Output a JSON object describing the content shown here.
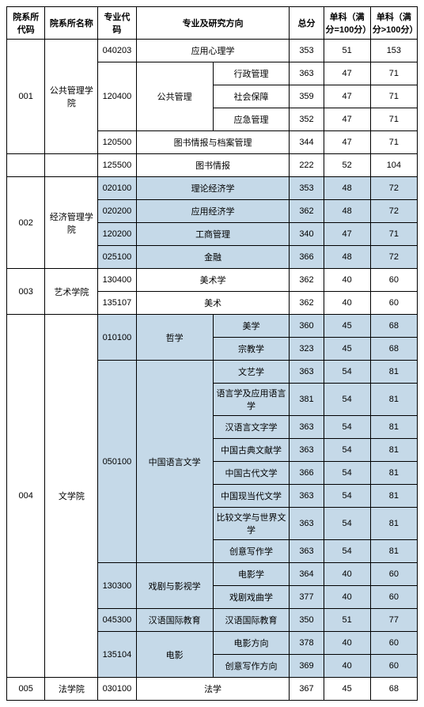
{
  "headers": {
    "dept_code": "院系所代码",
    "dept_name": "院系所名称",
    "major_code": "专业代码",
    "major_dir": "专业及研究方向",
    "total": "总分",
    "sub1": "单科（满分=100分）",
    "sub2": "单科（满分>100分）"
  },
  "colors": {
    "highlight": "#c5d9e8",
    "border": "#000000",
    "bg": "#ffffff"
  },
  "rows": [
    {
      "dept_code": "001",
      "dept_name": "公共管理学院",
      "major_code": "040203",
      "dir": "应用心理学",
      "sub": "",
      "total": "353",
      "s1": "51",
      "s2": "153",
      "span_dept": 5,
      "span_major": 1,
      "dir_span": 2
    },
    {
      "major_code": "120400",
      "dir": "公共管理",
      "sub": "行政管理",
      "total": "363",
      "s1": "47",
      "s2": "71",
      "span_major": 3,
      "dir_rowspan": 3
    },
    {
      "sub": "社会保障",
      "total": "359",
      "s1": "47",
      "s2": "71"
    },
    {
      "sub": "应急管理",
      "total": "352",
      "s1": "47",
      "s2": "71"
    },
    {
      "major_code": "120500",
      "dir": "图书情报与档案管理",
      "sub": "",
      "total": "344",
      "s1": "47",
      "s2": "71",
      "dir_span": 2
    },
    {
      "no_dept": true,
      "major_code": "125500",
      "dir": "图书情报",
      "sub": "",
      "total": "222",
      "s1": "52",
      "s2": "104",
      "dir_span": 2
    },
    {
      "dept_code": "002",
      "dept_name": "经济管理学院",
      "major_code": "020100",
      "dir": "理论经济学",
      "sub": "",
      "total": "353",
      "s1": "48",
      "s2": "72",
      "span_dept": 4,
      "dir_span": 2,
      "hl": true
    },
    {
      "major_code": "020200",
      "dir": "应用经济学",
      "sub": "",
      "total": "362",
      "s1": "48",
      "s2": "72",
      "dir_span": 2,
      "hl": true
    },
    {
      "major_code": "120200",
      "dir": "工商管理",
      "sub": "",
      "total": "340",
      "s1": "47",
      "s2": "71",
      "dir_span": 2,
      "hl": true
    },
    {
      "major_code": "025100",
      "dir": "金融",
      "sub": "",
      "total": "366",
      "s1": "48",
      "s2": "72",
      "dir_span": 2,
      "hl": true
    },
    {
      "dept_code": "003",
      "dept_name": "艺术学院",
      "major_code": "130400",
      "dir": "美术学",
      "sub": "",
      "total": "362",
      "s1": "40",
      "s2": "60",
      "span_dept": 2,
      "dir_span": 2
    },
    {
      "major_code": "135107",
      "dir": "美术",
      "sub": "",
      "total": "362",
      "s1": "40",
      "s2": "60",
      "dir_span": 2
    },
    {
      "dept_code": "004",
      "dept_name": "文学院",
      "major_code": "010100",
      "dir": "哲学",
      "sub": "美学",
      "total": "360",
      "s1": "45",
      "s2": "68",
      "span_dept": 15,
      "span_major": 2,
      "dir_rowspan": 2,
      "hl": true
    },
    {
      "sub": "宗教学",
      "total": "323",
      "s1": "45",
      "s2": "68",
      "hl": true
    },
    {
      "major_code": "050100",
      "dir": "中国语言文学",
      "sub": "文艺学",
      "total": "363",
      "s1": "54",
      "s2": "81",
      "span_major": 8,
      "dir_rowspan": 8,
      "hl": true
    },
    {
      "sub": "语言学及应用语言学",
      "total": "381",
      "s1": "54",
      "s2": "81",
      "hl": true
    },
    {
      "sub": "汉语言文字学",
      "total": "363",
      "s1": "54",
      "s2": "81",
      "hl": true
    },
    {
      "sub": "中国古典文献学",
      "total": "363",
      "s1": "54",
      "s2": "81",
      "hl": true
    },
    {
      "sub": "中国古代文学",
      "total": "366",
      "s1": "54",
      "s2": "81",
      "hl": true
    },
    {
      "sub": "中国现当代文学",
      "total": "363",
      "s1": "54",
      "s2": "81",
      "hl": true
    },
    {
      "sub": "比较文学与世界文学",
      "total": "363",
      "s1": "54",
      "s2": "81",
      "hl": true
    },
    {
      "sub": "创意写作学",
      "total": "363",
      "s1": "54",
      "s2": "81",
      "hl": true
    },
    {
      "major_code": "130300",
      "dir": "戏剧与影视学",
      "sub": "电影学",
      "total": "364",
      "s1": "40",
      "s2": "60",
      "span_major": 2,
      "dir_rowspan": 2,
      "hl": true
    },
    {
      "sub": "戏剧戏曲学",
      "total": "377",
      "s1": "40",
      "s2": "60",
      "hl": true
    },
    {
      "major_code": "045300",
      "dir": "汉语国际教育",
      "sub": "汉语国际教育",
      "total": "350",
      "s1": "51",
      "s2": "77",
      "hl": true
    },
    {
      "major_code": "135104",
      "dir": "电影",
      "sub": "电影方向",
      "total": "378",
      "s1": "40",
      "s2": "60",
      "span_major": 2,
      "dir_rowspan": 2,
      "hl": true
    },
    {
      "sub": "创意写作方向",
      "total": "369",
      "s1": "40",
      "s2": "60",
      "hl": true
    },
    {
      "dept_code": "005",
      "dept_name": "法学院",
      "major_code": "030100",
      "dir": "法学",
      "sub": "",
      "total": "367",
      "s1": "45",
      "s2": "68",
      "span_dept": 1,
      "dir_span": 2
    }
  ]
}
